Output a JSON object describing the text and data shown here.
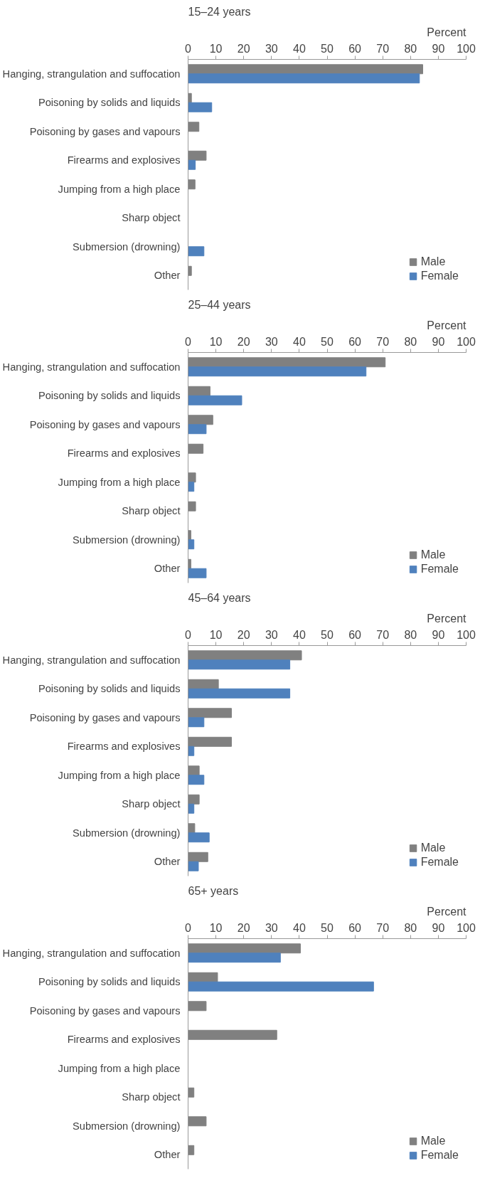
{
  "chart_data": [
    {
      "type": "bar",
      "orientation": "horizontal",
      "title": "15–24 years",
      "xlabel": "Percent",
      "categories": [
        "Hanging, strangulation and suffocation",
        "Poisoning by solids and liquids",
        "Poisoning by gases and vapours",
        "Firearms and explosives",
        "Jumping from a high place",
        "Sharp object",
        "Submersion (drowning)",
        "Other"
      ],
      "series": [
        {
          "name": "Male",
          "color": "#808080",
          "values": [
            84.4,
            1.2,
            3.9,
            6.5,
            2.5,
            0,
            0,
            1.2
          ]
        },
        {
          "name": "Female",
          "color": "#4f81bd",
          "values": [
            83.2,
            8.5,
            0,
            2.6,
            0,
            0,
            5.7,
            0
          ]
        }
      ],
      "xlim": [
        0,
        100
      ],
      "xticks": [
        0,
        10,
        20,
        30,
        40,
        50,
        60,
        70,
        80,
        90,
        100
      ],
      "grid": false,
      "legend": "bottom right"
    },
    {
      "type": "bar",
      "orientation": "horizontal",
      "title": "25–44 years",
      "xlabel": "Percent",
      "categories": [
        "Hanging, strangulation and suffocation",
        "Poisoning by solids and liquids",
        "Poisoning by gases and vapours",
        "Firearms and explosives",
        "Jumping from a high place",
        "Sharp object",
        "Submersion (drowning)",
        "Other"
      ],
      "series": [
        {
          "name": "Male",
          "color": "#808080",
          "values": [
            70.9,
            7.9,
            8.9,
            5.4,
            2.7,
            2.7,
            1.0,
            1.0
          ]
        },
        {
          "name": "Female",
          "color": "#4f81bd",
          "values": [
            64.0,
            19.3,
            6.5,
            0,
            2.1,
            0,
            2.1,
            6.5
          ]
        }
      ],
      "xlim": [
        0,
        100
      ],
      "xticks": [
        0,
        10,
        20,
        30,
        40,
        50,
        60,
        70,
        80,
        90,
        100
      ],
      "grid": false,
      "legend": "bottom right"
    },
    {
      "type": "bar",
      "orientation": "horizontal",
      "title": "45–64 years",
      "xlabel": "Percent",
      "categories": [
        "Hanging, strangulation and suffocation",
        "Poisoning by solids and liquids",
        "Poisoning by gases and vapours",
        "Firearms and explosives",
        "Jumping from a high place",
        "Sharp object",
        "Submersion (drowning)",
        "Other"
      ],
      "series": [
        {
          "name": "Male",
          "color": "#808080",
          "values": [
            40.8,
            10.9,
            15.6,
            15.6,
            4.0,
            4.0,
            2.4,
            7.1
          ]
        },
        {
          "name": "Female",
          "color": "#4f81bd",
          "values": [
            36.6,
            36.6,
            5.7,
            2.1,
            5.7,
            2.1,
            7.6,
            3.7
          ]
        }
      ],
      "xlim": [
        0,
        100
      ],
      "xticks": [
        0,
        10,
        20,
        30,
        40,
        50,
        60,
        70,
        80,
        90,
        100
      ],
      "grid": false,
      "legend": "bottom right"
    },
    {
      "type": "bar",
      "orientation": "horizontal",
      "title": "65+ years",
      "xlabel": "Percent",
      "categories": [
        "Hanging, strangulation and suffocation",
        "Poisoning by solids and liquids",
        "Poisoning by gases and vapours",
        "Firearms and explosives",
        "Jumping from a high place",
        "Sharp object",
        "Submersion (drowning)",
        "Other"
      ],
      "series": [
        {
          "name": "Male",
          "color": "#808080",
          "values": [
            40.4,
            10.6,
            6.5,
            31.9,
            0,
            2.1,
            6.5,
            2.1
          ]
        },
        {
          "name": "Female",
          "color": "#4f81bd",
          "values": [
            33.2,
            66.7,
            0,
            0,
            0,
            0,
            0,
            0
          ]
        }
      ],
      "xlim": [
        0,
        100
      ],
      "xticks": [
        0,
        10,
        20,
        30,
        40,
        50,
        60,
        70,
        80,
        90,
        100
      ],
      "grid": false,
      "legend": "bottom right"
    }
  ]
}
